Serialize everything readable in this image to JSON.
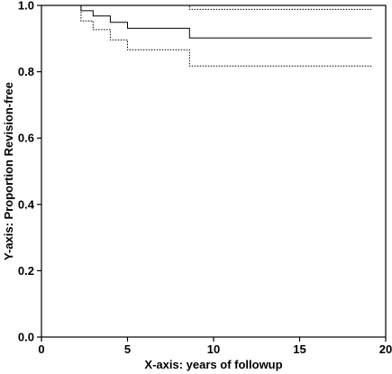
{
  "chart_data": {
    "type": "line",
    "title": "",
    "xlabel": "X-axis: years of followup",
    "ylabel": "Y-axis: Proportion Revision-free",
    "xlim": [
      0,
      20
    ],
    "ylim": [
      0,
      1.0
    ],
    "x_ticks": [
      "0",
      "5",
      "10",
      "15",
      "20"
    ],
    "y_ticks": [
      "0.0",
      "0.2",
      "0.4",
      "0.6",
      "0.8",
      "1.0"
    ],
    "grid": false,
    "legend": "none",
    "series": [
      {
        "style": "solid",
        "color": "#000000",
        "points": [
          [
            0,
            1.0
          ],
          [
            2.3,
            1.0
          ],
          [
            2.3,
            0.984
          ],
          [
            3.0,
            0.984
          ],
          [
            3.0,
            0.968
          ],
          [
            4.0,
            0.968
          ],
          [
            4.0,
            0.949
          ],
          [
            5.0,
            0.949
          ],
          [
            5.0,
            0.931
          ],
          [
            8.6,
            0.931
          ],
          [
            8.6,
            0.902
          ],
          [
            19.2,
            0.902
          ]
        ]
      },
      {
        "style": "dotted",
        "color": "#000000",
        "points": [
          [
            0,
            1.0
          ],
          [
            8.6,
            1.0
          ],
          [
            8.6,
            0.988
          ],
          [
            19.2,
            0.988
          ]
        ]
      },
      {
        "style": "dotted",
        "color": "#000000",
        "points": [
          [
            0,
            1.0
          ],
          [
            2.3,
            1.0
          ],
          [
            2.3,
            0.953
          ],
          [
            3.0,
            0.953
          ],
          [
            3.0,
            0.927
          ],
          [
            4.0,
            0.927
          ],
          [
            4.0,
            0.896
          ],
          [
            5.0,
            0.896
          ],
          [
            5.0,
            0.866
          ],
          [
            8.6,
            0.866
          ],
          [
            8.6,
            0.817
          ],
          [
            19.2,
            0.817
          ]
        ]
      }
    ]
  }
}
